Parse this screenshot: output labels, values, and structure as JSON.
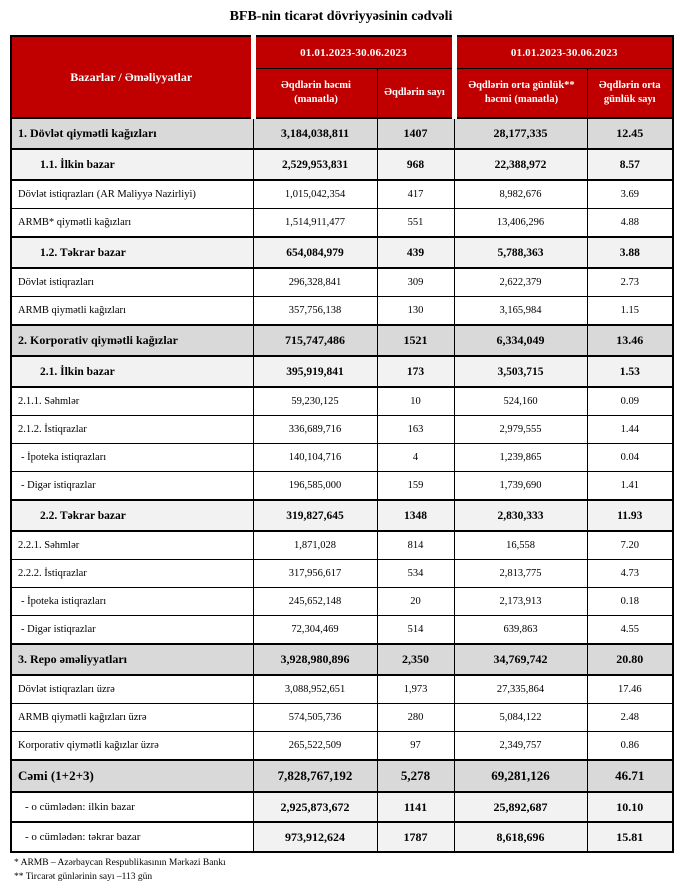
{
  "title": "BFB-nin ticarət dövriyyəsinin cədvəli",
  "colors": {
    "header_bg": "#C00000",
    "header_text": "#FFFFFF",
    "section_bg": "#D9D9D9",
    "subsection_bg": "#F2F2F2"
  },
  "table": {
    "header": {
      "col1": "Bazarlar / Əməliyyatlar",
      "period1": "01.01.2023-30.06.2023",
      "period2": "01.01.2023-30.06.2023",
      "sub": [
        "Əqdlərin həcmi (manatla)",
        "Əqdlərin sayı",
        "Əqdlərin orta günlük** həcmi (manatla)",
        "Əqdlərin orta günlük sayı"
      ]
    },
    "rows": [
      {
        "label": "1. Dövlət qiymətli kağızları",
        "values": [
          "3,184,038,811",
          "1407",
          "28,177,335",
          "12.45"
        ],
        "level": "section"
      },
      {
        "label": "1.1. İlkin bazar",
        "values": [
          "2,529,953,831",
          "968",
          "22,388,972",
          "8.57"
        ],
        "level": "subsection"
      },
      {
        "label": "Dövlət istiqrazları (AR Maliyyə Nazirliyi)",
        "values": [
          "1,015,042,354",
          "417",
          "8,982,676",
          "3.69"
        ],
        "level": "detail"
      },
      {
        "label": "ARMB* qiymətli kağızları",
        "values": [
          "1,514,911,477",
          "551",
          "13,406,296",
          "4.88"
        ],
        "level": "detail"
      },
      {
        "label": "1.2. Təkrar bazar",
        "values": [
          "654,084,979",
          "439",
          "5,788,363",
          "3.88"
        ],
        "level": "subsection"
      },
      {
        "label": "Dövlət istiqrazları",
        "values": [
          "296,328,841",
          "309",
          "2,622,379",
          "2.73"
        ],
        "level": "detail"
      },
      {
        "label": "ARMB qiymətli kağızları",
        "values": [
          "357,756,138",
          "130",
          "3,165,984",
          "1.15"
        ],
        "level": "detail"
      },
      {
        "label": "2. Korporativ qiymətli kağızlar",
        "values": [
          "715,747,486",
          "1521",
          "6,334,049",
          "13.46"
        ],
        "level": "section"
      },
      {
        "label": "2.1. İlkin bazar",
        "values": [
          "395,919,841",
          "173",
          "3,503,715",
          "1.53"
        ],
        "level": "subsection"
      },
      {
        "label": "2.1.1. Səhmlər",
        "values": [
          "59,230,125",
          "10",
          "524,160",
          "0.09"
        ],
        "level": "detail"
      },
      {
        "label": "2.1.2. İstiqrazlar",
        "values": [
          "336,689,716",
          "163",
          "2,979,555",
          "1.44"
        ],
        "level": "detail"
      },
      {
        "label": "- İpoteka istiqrazları",
        "values": [
          "140,104,716",
          "4",
          "1,239,865",
          "0.04"
        ],
        "level": "dash"
      },
      {
        "label": "- Digər istiqrazlar",
        "values": [
          "196,585,000",
          "159",
          "1,739,690",
          "1.41"
        ],
        "level": "dash"
      },
      {
        "label": "2.2. Təkrar bazar",
        "values": [
          "319,827,645",
          "1348",
          "2,830,333",
          "11.93"
        ],
        "level": "subsection"
      },
      {
        "label": "2.2.1. Səhmlər",
        "values": [
          "1,871,028",
          "814",
          "16,558",
          "7.20"
        ],
        "level": "detail"
      },
      {
        "label": "2.2.2. İstiqrazlar",
        "values": [
          "317,956,617",
          "534",
          "2,813,775",
          "4.73"
        ],
        "level": "detail"
      },
      {
        "label": "- İpoteka istiqrazları",
        "values": [
          "245,652,148",
          "20",
          "2,173,913",
          "0.18"
        ],
        "level": "dash"
      },
      {
        "label": "- Digər istiqrazlar",
        "values": [
          "72,304,469",
          "514",
          "639,863",
          "4.55"
        ],
        "level": "dash"
      },
      {
        "label": "3. Repo əməliyyatları",
        "values": [
          "3,928,980,896",
          "2,350",
          "34,769,742",
          "20.80"
        ],
        "level": "section"
      },
      {
        "label": "Dövlət istiqrazları üzrə",
        "values": [
          "3,088,952,651",
          "1,973",
          "27,335,864",
          "17.46"
        ],
        "level": "detail"
      },
      {
        "label": "ARMB qiymətli kağızları üzrə",
        "values": [
          "574,505,736",
          "280",
          "5,084,122",
          "2.48"
        ],
        "level": "detail"
      },
      {
        "label": "Korporativ qiymətli kağızlar üzrə",
        "values": [
          "265,522,509",
          "97",
          "2,349,757",
          "0.86"
        ],
        "level": "detail"
      },
      {
        "label": "Cəmi (1+2+3)",
        "values": [
          "7,828,767,192",
          "5,278",
          "69,281,126",
          "46.71"
        ],
        "level": "total"
      },
      {
        "label": "- o cümlədən: ilkin bazar",
        "values": [
          "2,925,873,672",
          "1141",
          "25,892,687",
          "10.10"
        ],
        "level": "total-sub"
      },
      {
        "label": "- o cümlədən: təkrar bazar",
        "values": [
          "973,912,624",
          "1787",
          "8,618,696",
          "15.81"
        ],
        "level": "total-sub"
      }
    ]
  },
  "footnotes": [
    "* ARMB – Azərbaycan Respublikasının Mərkəzi Bankı",
    "** Tircarət günlərinin sayı –113 gün"
  ]
}
